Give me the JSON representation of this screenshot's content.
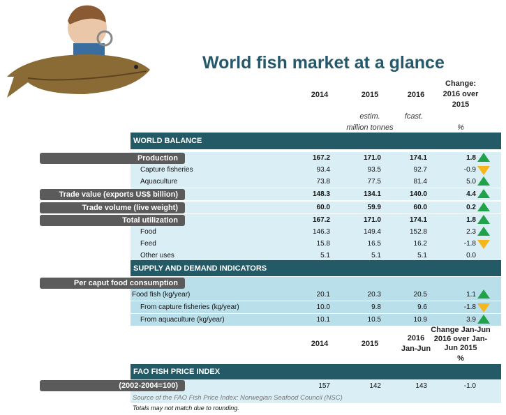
{
  "title": "World fish market at a glance",
  "columns": {
    "y1": "2014",
    "y2": "2015",
    "y3": "2016",
    "change": "Change: 2016 over 2015",
    "estim": "estim.",
    "fcast": "fcast.",
    "unit": "million tonnes",
    "pct": "%"
  },
  "world_balance": {
    "header": "WORLD BALANCE",
    "rows": [
      {
        "label": "Production",
        "v": [
          "167.2",
          "171.0",
          "174.1",
          "1.8"
        ],
        "trend": "up",
        "main": true
      },
      {
        "label": "Capture fisheries",
        "v": [
          "93.4",
          "93.5",
          "92.7",
          "-0.9"
        ],
        "trend": "down"
      },
      {
        "label": "Aquaculture",
        "v": [
          "73.8",
          "77.5",
          "81.4",
          "5.0"
        ],
        "trend": "up"
      },
      {
        "label": "Trade value (exports US$ billion)",
        "v": [
          "148.3",
          "134.1",
          "140.0",
          "4.4"
        ],
        "trend": "up",
        "main": true
      },
      {
        "label": "Trade volume (live weight)",
        "v": [
          "60.0",
          "59.9",
          "60.0",
          "0.2"
        ],
        "trend": "up",
        "main": true
      },
      {
        "label": "Total utilization",
        "v": [
          "167.2",
          "171.0",
          "174.1",
          "1.8"
        ],
        "trend": "up",
        "main": true
      },
      {
        "label": "Food",
        "v": [
          "146.3",
          "149.4",
          "152.8",
          "2.3"
        ],
        "trend": "up"
      },
      {
        "label": "Feed",
        "v": [
          "15.8",
          "16.5",
          "16.2",
          "-1.8"
        ],
        "trend": "down"
      },
      {
        "label": "Other uses",
        "v": [
          "5.1",
          "5.1",
          "5.1",
          "0.0"
        ],
        "trend": "none"
      }
    ]
  },
  "supply_demand": {
    "header": "SUPPLY AND DEMAND INDICATORS",
    "group": "Per caput food consumption",
    "rows": [
      {
        "label": "Food fish (kg/year)",
        "v": [
          "20.1",
          "20.3",
          "20.5",
          "1.1"
        ],
        "trend": "up",
        "top": true
      },
      {
        "label": "From capture fisheries (kg/year)",
        "v": [
          "10.0",
          "9.8",
          "9.6",
          "-1.8"
        ],
        "trend": "down"
      },
      {
        "label": "From aquaculture (kg/year)",
        "v": [
          "10.1",
          "10.5",
          "10.9",
          "3.9"
        ],
        "trend": "up"
      }
    ]
  },
  "columns2": {
    "y1": "2014",
    "y2": "2015",
    "y3a": "2016",
    "y3b": "Jan-Jun",
    "change": "Change Jan-Jun 2016 over Jan-Jun 2015",
    "pct": "%"
  },
  "price_index": {
    "header": "FAO FISH PRICE INDEX",
    "label": "(2002-2004=100)",
    "v": [
      "157",
      "142",
      "143",
      "-1.0"
    ],
    "source": "Source of the FAO Fish Price Index: Norwegian Seafood Council (NSC)"
  },
  "footnote": "Totals may not match due to rounding.",
  "colors": {
    "band": "#245a66",
    "light": "#d9eef5",
    "dark": "#b9dfea",
    "label": "#5b5b5b",
    "up": "#1fa24a",
    "down": "#f4b61a"
  }
}
